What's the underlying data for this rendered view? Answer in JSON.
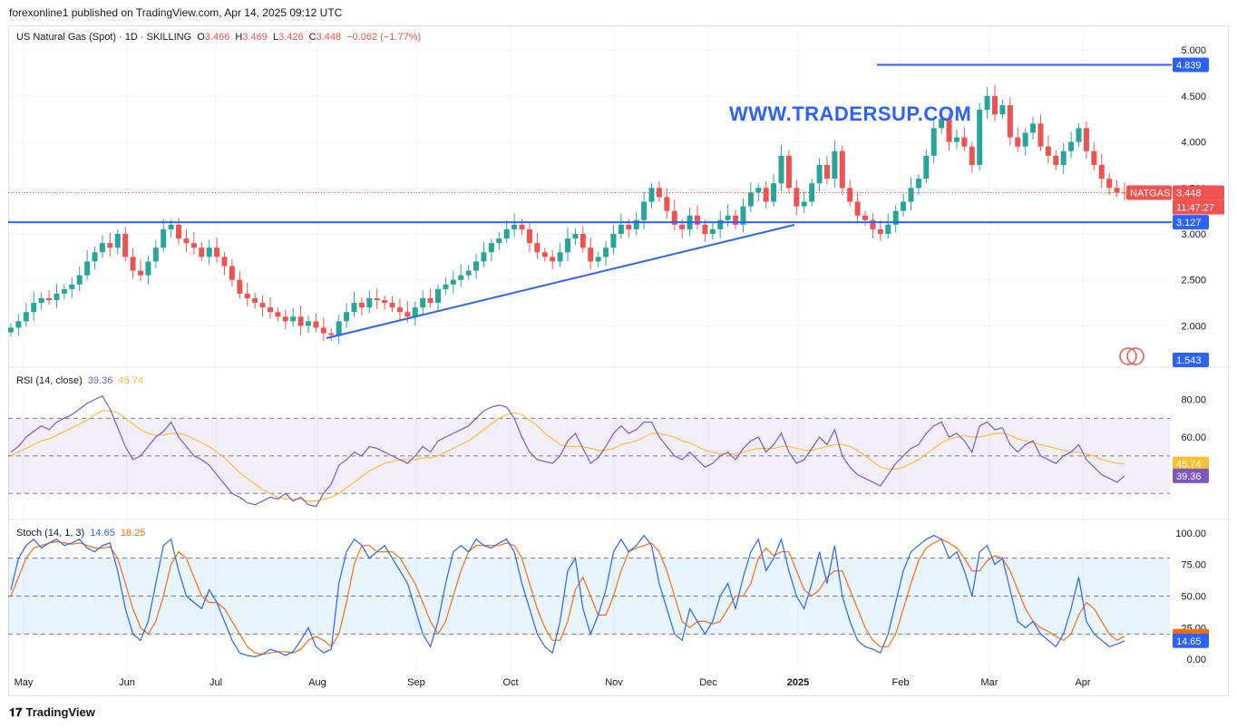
{
  "caption": "forexonline1 published on TradingView.com, Apr 14, 2025 09:12 UTC",
  "footer": {
    "logo_text": "TradingView"
  },
  "watermark": "WWW.TRADERSUP.COM",
  "colors": {
    "up": "#26a69a",
    "down": "#ef5350",
    "line": "#2962ff",
    "rsi": "#7e57c2",
    "rsi_ma": "#fbc02d",
    "stoch_k": "#2962ff",
    "stoch_d": "#ff6d00"
  },
  "legend": {
    "symbol": "US Natural Gas (Spot) · 1D · SKILLING",
    "o_label": "O",
    "o": "3.466",
    "h_label": "H",
    "h": "3.469",
    "l_label": "L",
    "l": "3.426",
    "c_label": "C",
    "c": "3.448",
    "chg": "−0.062 (−1.77%)",
    "rsi_label": "RSI (14, close)",
    "rsi_val": "39.36",
    "rsi_ma": "45.74",
    "stoch_label": "Stoch (14, 1, 3)",
    "stoch_k": "14.65",
    "stoch_d": "18.25"
  },
  "tags": {
    "resistance": "4.839",
    "support": "3.127",
    "last": "3.448",
    "countdown": "11:47:27",
    "symbol": "NATGAS",
    "low": "1.543",
    "rsi_ma": "45.74",
    "rsi": "39.36",
    "stoch_d": "18.25",
    "stoch_k": "14.65"
  },
  "chart_data": [
    {
      "type": "candlestick",
      "title": "US Natural Gas (Spot) · 1D · SKILLING",
      "x_ticks": [
        "May",
        "Jun",
        "Jul",
        "Aug",
        "Sep",
        "Oct",
        "Nov",
        "Dec",
        "2025",
        "Feb",
        "Mar",
        "Apr"
      ],
      "y_ticks": [
        "5.000",
        "4.500",
        "4.000",
        "3.500",
        "3.000",
        "2.500",
        "2.000"
      ],
      "ylim": [
        1.6,
        5.1
      ],
      "closes": [
        1.98,
        2.05,
        2.15,
        2.25,
        2.3,
        2.28,
        2.35,
        2.4,
        2.45,
        2.55,
        2.7,
        2.8,
        2.9,
        2.85,
        3.0,
        2.75,
        2.6,
        2.55,
        2.7,
        2.85,
        3.05,
        3.1,
        2.95,
        2.9,
        2.85,
        2.75,
        2.85,
        2.75,
        2.65,
        2.5,
        2.35,
        2.3,
        2.25,
        2.2,
        2.15,
        2.1,
        2.05,
        2.1,
        2.0,
        2.05,
        1.98,
        1.92,
        1.9,
        2.05,
        2.15,
        2.25,
        2.2,
        2.3,
        2.28,
        2.25,
        2.2,
        2.15,
        2.1,
        2.2,
        2.3,
        2.25,
        2.4,
        2.45,
        2.5,
        2.55,
        2.6,
        2.7,
        2.8,
        2.9,
        2.95,
        3.05,
        3.1,
        3.05,
        2.9,
        2.8,
        2.75,
        2.7,
        2.8,
        2.95,
        3.0,
        2.85,
        2.7,
        2.75,
        2.85,
        3.0,
        3.1,
        3.05,
        3.15,
        3.35,
        3.5,
        3.4,
        3.25,
        3.1,
        3.05,
        3.2,
        3.1,
        3.0,
        3.05,
        3.15,
        3.2,
        3.1,
        3.3,
        3.45,
        3.5,
        3.35,
        3.55,
        3.85,
        3.5,
        3.3,
        3.35,
        3.55,
        3.75,
        3.6,
        3.9,
        3.5,
        3.35,
        3.2,
        3.15,
        3.05,
        3.0,
        3.1,
        3.25,
        3.35,
        3.5,
        3.6,
        3.85,
        4.15,
        4.25,
        4.0,
        4.05,
        3.95,
        3.75,
        4.35,
        4.5,
        4.3,
        4.4,
        4.05,
        3.95,
        4.1,
        4.2,
        3.95,
        3.85,
        3.75,
        3.9,
        4.0,
        4.15,
        3.9,
        3.75,
        3.6,
        3.5,
        3.45,
        3.448
      ],
      "highs_annotated": {
        "resistance": 4.839,
        "support": 3.127,
        "last": 3.448,
        "low_marker": 1.543
      }
    },
    {
      "type": "line",
      "title": "RSI (14, close)",
      "y_ticks": [
        "80.00",
        "60.00"
      ],
      "ylim": [
        20,
        90
      ],
      "bands": [
        70,
        30
      ],
      "series": [
        {
          "name": "RSI",
          "values": [
            52,
            55,
            60,
            63,
            66,
            64,
            68,
            70,
            72,
            75,
            78,
            80,
            82,
            75,
            65,
            55,
            48,
            50,
            55,
            60,
            63,
            68,
            60,
            55,
            50,
            48,
            45,
            40,
            35,
            30,
            28,
            25,
            24,
            26,
            28,
            27,
            30,
            26,
            28,
            24,
            23,
            30,
            35,
            45,
            48,
            52,
            50,
            55,
            54,
            52,
            50,
            48,
            46,
            50,
            55,
            52,
            58,
            60,
            62,
            64,
            66,
            70,
            74,
            76,
            77,
            76,
            70,
            60,
            52,
            48,
            47,
            46,
            50,
            58,
            62,
            54,
            46,
            49,
            55,
            62,
            66,
            62,
            64,
            68,
            68,
            60,
            55,
            50,
            48,
            52,
            48,
            44,
            46,
            50,
            52,
            48,
            54,
            58,
            60,
            52,
            56,
            62,
            52,
            46,
            48,
            54,
            60,
            56,
            64,
            50,
            44,
            40,
            38,
            36,
            34,
            40,
            46,
            50,
            54,
            56,
            62,
            66,
            68,
            60,
            62,
            58,
            52,
            66,
            68,
            64,
            65,
            56,
            52,
            56,
            58,
            50,
            48,
            46,
            50,
            52,
            56,
            48,
            44,
            40,
            38,
            36,
            39.36
          ]
        },
        {
          "name": "MA",
          "values": [
            50,
            52,
            54,
            56,
            58,
            59,
            61,
            63,
            65,
            67,
            69,
            72,
            74,
            74,
            73,
            70,
            67,
            64,
            62,
            61,
            61,
            62,
            62,
            61,
            59,
            57,
            55,
            52,
            49,
            45,
            41,
            38,
            35,
            32,
            30,
            28,
            27,
            27,
            27,
            26,
            26,
            27,
            28,
            30,
            33,
            36,
            39,
            42,
            44,
            46,
            47,
            48,
            48,
            48,
            49,
            49,
            50,
            52,
            54,
            56,
            58,
            61,
            64,
            67,
            70,
            72,
            73,
            72,
            69,
            66,
            62,
            59,
            56,
            55,
            55,
            55,
            54,
            53,
            53,
            54,
            56,
            57,
            58,
            60,
            62,
            62,
            61,
            60,
            58,
            57,
            55,
            53,
            52,
            51,
            51,
            51,
            52,
            53,
            54,
            54,
            54,
            55,
            55,
            54,
            53,
            53,
            54,
            55,
            56,
            56,
            55,
            53,
            50,
            47,
            44,
            43,
            43,
            44,
            46,
            48,
            51,
            54,
            57,
            59,
            60,
            61,
            60,
            60,
            61,
            62,
            62,
            61,
            59,
            58,
            57,
            56,
            55,
            54,
            53,
            52,
            52,
            51,
            50,
            48,
            47,
            46,
            45.74
          ]
        }
      ]
    },
    {
      "type": "line",
      "title": "Stoch (14, 1, 3)",
      "y_ticks": [
        "100.00",
        "75.00",
        "50.00",
        "25.00",
        "0.00"
      ],
      "ylim": [
        -2,
        102
      ],
      "bands": [
        80,
        20
      ],
      "series": [
        {
          "name": "%K",
          "values": [
            55,
            80,
            90,
            95,
            88,
            92,
            95,
            90,
            92,
            95,
            88,
            85,
            90,
            92,
            70,
            40,
            20,
            15,
            30,
            60,
            90,
            95,
            70,
            50,
            45,
            40,
            55,
            45,
            30,
            15,
            5,
            3,
            2,
            4,
            8,
            6,
            3,
            6,
            15,
            25,
            10,
            5,
            8,
            60,
            85,
            95,
            90,
            80,
            85,
            90,
            80,
            70,
            60,
            40,
            20,
            10,
            30,
            60,
            85,
            90,
            85,
            95,
            90,
            88,
            92,
            95,
            85,
            60,
            40,
            20,
            10,
            5,
            30,
            70,
            80,
            40,
            20,
            35,
            55,
            85,
            95,
            85,
            90,
            98,
            90,
            60,
            40,
            20,
            15,
            40,
            30,
            20,
            30,
            50,
            60,
            40,
            65,
            85,
            95,
            70,
            80,
            95,
            70,
            50,
            40,
            60,
            85,
            60,
            90,
            50,
            30,
            15,
            10,
            8,
            5,
            20,
            45,
            70,
            85,
            90,
            95,
            98,
            95,
            80,
            85,
            70,
            50,
            85,
            90,
            75,
            80,
            55,
            30,
            25,
            30,
            20,
            15,
            10,
            20,
            40,
            65,
            30,
            20,
            15,
            10,
            12,
            14.65
          ]
        },
        {
          "name": "%D",
          "values": [
            50,
            65,
            80,
            88,
            90,
            92,
            93,
            92,
            91,
            92,
            90,
            88,
            88,
            89,
            80,
            60,
            40,
            25,
            20,
            30,
            50,
            75,
            85,
            80,
            65,
            50,
            45,
            45,
            40,
            30,
            20,
            10,
            5,
            4,
            5,
            6,
            6,
            5,
            8,
            15,
            18,
            15,
            10,
            20,
            45,
            75,
            90,
            90,
            85,
            85,
            85,
            80,
            70,
            60,
            45,
            30,
            20,
            30,
            50,
            70,
            85,
            90,
            90,
            90,
            90,
            92,
            90,
            80,
            60,
            40,
            25,
            15,
            15,
            30,
            55,
            65,
            50,
            35,
            35,
            50,
            70,
            85,
            88,
            90,
            92,
            85,
            70,
            50,
            30,
            25,
            30,
            30,
            28,
            30,
            40,
            50,
            50,
            60,
            80,
            88,
            82,
            85,
            85,
            70,
            55,
            50,
            55,
            65,
            70,
            70,
            55,
            40,
            25,
            15,
            10,
            10,
            20,
            40,
            60,
            78,
            88,
            92,
            95,
            92,
            88,
            80,
            70,
            70,
            78,
            82,
            80,
            70,
            55,
            40,
            30,
            25,
            22,
            18,
            15,
            20,
            35,
            45,
            40,
            30,
            20,
            15,
            18.25
          ]
        }
      ]
    }
  ]
}
